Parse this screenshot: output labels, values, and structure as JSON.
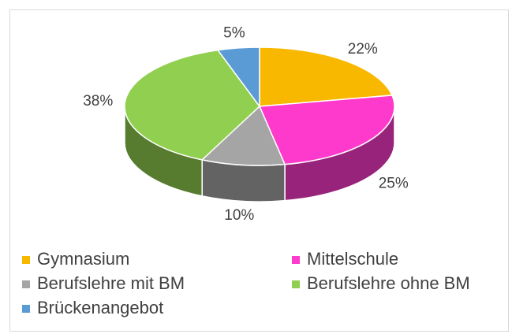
{
  "chart_data": {
    "type": "pie3d",
    "categories": [
      "Gymnasium",
      "Mittelschule",
      "Berufslehre mit BM",
      "Berufslehre ohne BM",
      "Brückenangebot"
    ],
    "values": [
      22,
      25,
      10,
      38,
      5
    ],
    "value_labels": [
      "22%",
      "25%",
      "10%",
      "38%",
      "5%"
    ],
    "colors": [
      "#f9b800",
      "#fe3acd",
      "#a5a5a5",
      "#91cf50",
      "#5b9bd5"
    ],
    "legend": "bottom"
  }
}
